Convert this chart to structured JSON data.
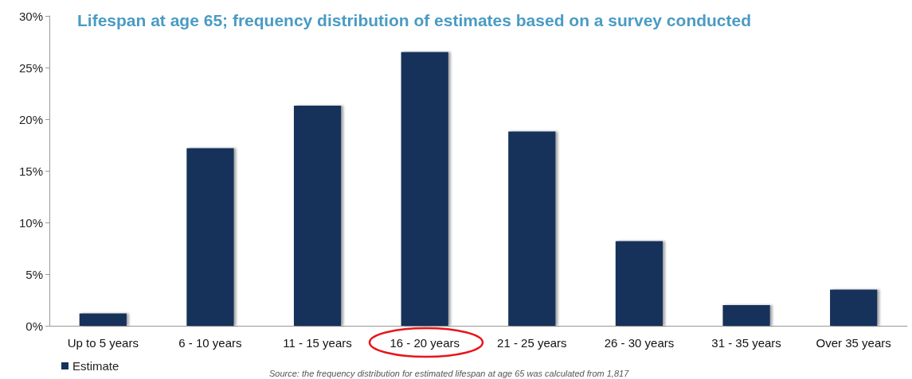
{
  "chart_data": {
    "type": "bar",
    "title": "Lifespan at age 65; frequency distribution of estimates based on a survey conducted",
    "categories": [
      "Up to 5 years",
      "6 - 10 years",
      "11 - 15 years",
      "16 - 20 years",
      "21 - 25 years",
      "26 - 30 years",
      "31 - 35 years",
      "Over 35 years"
    ],
    "series": [
      {
        "name": "Estimate",
        "color": "#14325a",
        "values": [
          1.2,
          17.2,
          21.3,
          26.5,
          18.8,
          8.2,
          2.0,
          3.5
        ]
      }
    ],
    "ylim": [
      0,
      30
    ],
    "yticks": [
      {
        "value": 0,
        "label": "0%"
      },
      {
        "value": 5,
        "label": "5%"
      },
      {
        "value": 10,
        "label": "10%"
      },
      {
        "value": 15,
        "label": "15%"
      },
      {
        "value": 20,
        "label": "20%"
      },
      {
        "value": 25,
        "label": "25%"
      },
      {
        "value": 30,
        "label": "30%"
      }
    ],
    "grid": false,
    "legend": "bottom left",
    "annotations": [
      "Source: the frequency distribution for estimated lifespan at age 65 was calculated from 1,817"
    ]
  }
}
